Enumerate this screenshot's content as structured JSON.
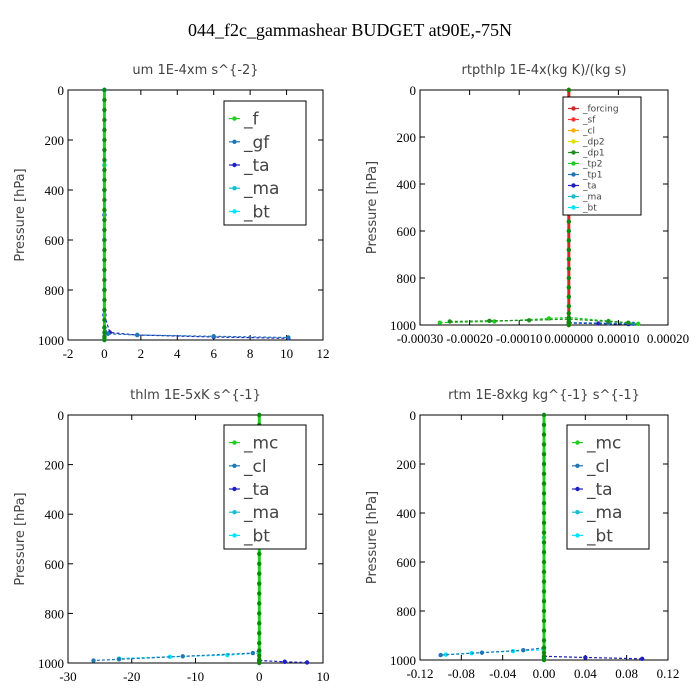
{
  "page_title": "044_f2c_gammashear  BUDGET at90E,-75N",
  "chart_data": [
    {
      "type": "line",
      "title": "um  1E-4xm s^{-2}",
      "ylabel": "Pressure [hPa]",
      "xlim": [
        -2,
        12
      ],
      "ylim": [
        1000,
        0
      ],
      "x_ticks": [
        "-2",
        "0",
        "2",
        "4",
        "6",
        "8",
        "10",
        "12"
      ],
      "y_ticks": [
        "0",
        "200",
        "400",
        "600",
        "800",
        "1000"
      ],
      "legend_position": "top-right",
      "legend_font": "large",
      "series": [
        {
          "name": "_f",
          "color": "#22cc22",
          "x": [
            0,
            0,
            0,
            0,
            0,
            0,
            0,
            0,
            0,
            0,
            0,
            0,
            0,
            0,
            0,
            0,
            0,
            0,
            0,
            0,
            0,
            0,
            0,
            0,
            0,
            0,
            0,
            0,
            0
          ],
          "y": [
            0,
            40,
            80,
            120,
            160,
            200,
            240,
            280,
            320,
            360,
            400,
            440,
            480,
            520,
            560,
            600,
            640,
            680,
            720,
            760,
            800,
            840,
            880,
            920,
            950,
            970,
            985,
            993,
            1000
          ]
        },
        {
          "name": "_gf",
          "color": "#1f77b4",
          "x": [
            0,
            0,
            0,
            0,
            0.2,
            1.8,
            6,
            10.1
          ],
          "y": [
            0,
            400,
            800,
            950,
            975,
            980,
            985,
            990
          ]
        },
        {
          "name": "_ta",
          "color": "#1f1fbf",
          "x": [
            0,
            0,
            0,
            0.3,
            1.8,
            6,
            10.1
          ],
          "y": [
            0,
            500,
            900,
            970,
            980,
            988,
            993
          ]
        },
        {
          "name": "_ma",
          "color": "#17becf",
          "x": [
            0,
            0,
            0,
            0,
            0
          ],
          "y": [
            0,
            300,
            600,
            900,
            1000
          ]
        },
        {
          "name": "_bt",
          "color": "#00e5ff",
          "x": [
            0,
            0,
            0,
            0,
            0
          ],
          "y": [
            0,
            300,
            600,
            900,
            1000
          ]
        }
      ]
    },
    {
      "type": "line",
      "title": "rtpthlp  1E-4x(kg K)/(kg s)",
      "ylabel": "Pressure [hPa]",
      "xlim": [
        -0.0003,
        0.0002
      ],
      "ylim": [
        1000,
        0
      ],
      "x_ticks": [
        "-0.00030",
        "-0.00020",
        "-0.00010",
        "0.000000",
        "0.00010",
        "0.00020"
      ],
      "y_ticks": [
        "0",
        "200",
        "400",
        "600",
        "800",
        "1000"
      ],
      "legend_position": "top-right",
      "legend_font": "small",
      "series": [
        {
          "name": "_forcing",
          "color": "#d62728",
          "x": [
            0,
            0,
            0,
            0,
            0,
            0,
            0,
            0,
            0,
            0,
            0,
            0,
            0,
            0,
            0,
            0,
            0,
            0,
            0,
            0,
            0,
            0,
            0,
            0,
            0,
            0,
            0,
            0,
            0
          ],
          "y": [
            0,
            40,
            80,
            120,
            160,
            200,
            240,
            280,
            320,
            360,
            400,
            440,
            480,
            520,
            560,
            600,
            640,
            680,
            720,
            760,
            800,
            840,
            880,
            920,
            950,
            970,
            985,
            993,
            1000
          ]
        },
        {
          "name": "_sf",
          "color": "#ff3333",
          "x": [
            0,
            0,
            0
          ],
          "y": [
            0,
            500,
            1000
          ]
        },
        {
          "name": "_cl",
          "color": "#ffaa00",
          "x": [
            0,
            0,
            0
          ],
          "y": [
            0,
            500,
            1000
          ]
        },
        {
          "name": "_dp2",
          "color": "#e0e000",
          "x": [
            0,
            0,
            0
          ],
          "y": [
            0,
            500,
            1000
          ]
        },
        {
          "name": "_dp1",
          "color": "#228b22",
          "x": [
            -0.00024,
            -0.00016,
            -8e-05,
            0,
            8e-05,
            0.00012
          ],
          "y": [
            985,
            982,
            980,
            975,
            985,
            990
          ]
        },
        {
          "name": "_tp2",
          "color": "#22cc22",
          "x": [
            -0.00026,
            -0.00015,
            -4e-05,
            0,
            8e-05,
            0.00014
          ],
          "y": [
            990,
            985,
            972,
            968,
            983,
            995
          ]
        },
        {
          "name": "_tp1",
          "color": "#1f77b4",
          "x": [
            0,
            8e-05,
            0.00013
          ],
          "y": [
            990,
            992,
            995
          ]
        },
        {
          "name": "_ta",
          "color": "#1f1fbf",
          "x": [
            0,
            6e-05,
            0.00012
          ],
          "y": [
            992,
            994,
            996
          ]
        },
        {
          "name": "_ma",
          "color": "#17becf",
          "x": [
            0,
            0,
            0
          ],
          "y": [
            0,
            500,
            1000
          ]
        },
        {
          "name": "_bt",
          "color": "#00e5ff",
          "x": [
            0,
            0,
            0
          ],
          "y": [
            0,
            500,
            1000
          ]
        }
      ]
    },
    {
      "type": "line",
      "title": "thlm  1E-5xK s^{-1}",
      "ylabel": "Pressure [hPa]",
      "xlim": [
        -30,
        10
      ],
      "ylim": [
        1000,
        0
      ],
      "x_ticks": [
        "-30",
        "-20",
        "-10",
        "0",
        "10"
      ],
      "y_ticks": [
        "0",
        "200",
        "400",
        "600",
        "800",
        "1000"
      ],
      "legend_position": "top-right",
      "legend_font": "large",
      "series": [
        {
          "name": "_mc",
          "color": "#22cc22",
          "x": [
            0,
            0,
            0,
            0,
            0,
            0,
            0,
            0,
            0,
            0,
            0,
            0,
            0,
            0,
            0,
            0,
            0,
            0,
            0,
            0,
            0,
            0,
            0,
            0,
            0,
            0,
            0,
            0,
            0
          ],
          "y": [
            0,
            40,
            80,
            120,
            160,
            200,
            240,
            280,
            320,
            360,
            400,
            440,
            480,
            520,
            560,
            600,
            640,
            680,
            720,
            760,
            800,
            840,
            880,
            920,
            950,
            970,
            985,
            993,
            1000
          ]
        },
        {
          "name": "_cl",
          "color": "#1f77b4",
          "x": [
            0,
            -1,
            -12,
            -22,
            -26
          ],
          "y": [
            950,
            960,
            973,
            985,
            990
          ]
        },
        {
          "name": "_ta",
          "color": "#1f1fbf",
          "x": [
            0,
            4,
            7.5
          ],
          "y": [
            990,
            995,
            998
          ]
        },
        {
          "name": "_ma",
          "color": "#17becf",
          "x": [
            0,
            0,
            0
          ],
          "y": [
            0,
            500,
            1000
          ]
        },
        {
          "name": "_bt",
          "color": "#00e5ff",
          "x": [
            0,
            -5,
            -14,
            -22
          ],
          "y": [
            960,
            968,
            975,
            982
          ]
        }
      ]
    },
    {
      "type": "line",
      "title": "rtm  1E-8xkg kg^{-1} s^{-1}",
      "ylabel": "Pressure [hPa]",
      "xlim": [
        -0.12,
        0.12
      ],
      "ylim": [
        1000,
        0
      ],
      "x_ticks": [
        "-0.12",
        "-0.08",
        "-0.04",
        "0.00",
        "0.04",
        "0.08",
        "0.12"
      ],
      "y_ticks": [
        "0",
        "200",
        "400",
        "600",
        "800",
        "1000"
      ],
      "legend_position": "top-right",
      "legend_font": "large",
      "series": [
        {
          "name": "_mc",
          "color": "#22cc22",
          "x": [
            0,
            0,
            0,
            0,
            0,
            0,
            0,
            0,
            0,
            0,
            0,
            0,
            0,
            0,
            0,
            0,
            0,
            0,
            0,
            0,
            0,
            0,
            0,
            0,
            0,
            0,
            0,
            0,
            0
          ],
          "y": [
            0,
            40,
            80,
            120,
            160,
            200,
            240,
            280,
            320,
            360,
            400,
            440,
            480,
            520,
            560,
            600,
            640,
            680,
            720,
            760,
            800,
            840,
            880,
            920,
            950,
            970,
            985,
            993,
            1000
          ]
        },
        {
          "name": "_cl",
          "color": "#1f77b4",
          "x": [
            0,
            -0.02,
            -0.06,
            -0.1
          ],
          "y": [
            950,
            960,
            970,
            980
          ]
        },
        {
          "name": "_ta",
          "color": "#1f1fbf",
          "x": [
            0,
            0.04,
            0.095
          ],
          "y": [
            985,
            990,
            995
          ]
        },
        {
          "name": "_ma",
          "color": "#17becf",
          "x": [
            0,
            0,
            0
          ],
          "y": [
            0,
            500,
            1000
          ]
        },
        {
          "name": "_bt",
          "color": "#00e5ff",
          "x": [
            0,
            -0.03,
            -0.07,
            -0.095
          ],
          "y": [
            958,
            964,
            972,
            978
          ]
        }
      ]
    }
  ]
}
